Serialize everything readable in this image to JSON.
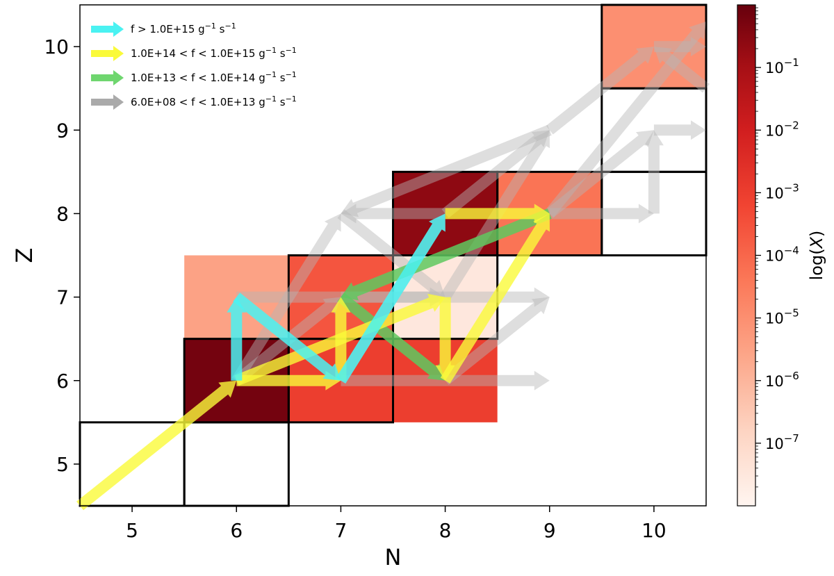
{
  "chart_data": {
    "type": "heatmap",
    "xlabel": "N",
    "ylabel": "Z",
    "xlim": [
      4.5,
      10.5
    ],
    "ylim": [
      4.5,
      10.5
    ],
    "xticks": [
      "5",
      "6",
      "7",
      "8",
      "9",
      "10"
    ],
    "yticks": [
      "5",
      "6",
      "7",
      "8",
      "9",
      "10"
    ],
    "colorbar": {
      "label_prefix": "log(",
      "label_var": "X",
      "label_suffix": ")",
      "log_min": -8.0,
      "log_max": 0,
      "ticks": [
        {
          "exp": -1,
          "base": "10",
          "power": "−1"
        },
        {
          "exp": -2,
          "base": "10",
          "power": "−2"
        },
        {
          "exp": -3,
          "base": "10",
          "power": "−3"
        },
        {
          "exp": -4,
          "base": "10",
          "power": "−4"
        },
        {
          "exp": -5,
          "base": "10",
          "power": "−5"
        },
        {
          "exp": -6,
          "base": "10",
          "power": "−6"
        },
        {
          "exp": -7,
          "base": "10",
          "power": "−7"
        }
      ]
    },
    "cells": [
      {
        "N": 6,
        "Z": 6,
        "log_x": -0.2
      },
      {
        "N": 7,
        "Z": 6,
        "log_x": -3.0
      },
      {
        "N": 8,
        "Z": 6,
        "log_x": -3.0
      },
      {
        "N": 6,
        "Z": 7,
        "log_x": -5.5
      },
      {
        "N": 7,
        "Z": 7,
        "log_x": -3.6
      },
      {
        "N": 8,
        "Z": 7,
        "log_x": -7.5
      },
      {
        "N": 8,
        "Z": 8,
        "log_x": -0.6
      },
      {
        "N": 9,
        "Z": 8,
        "log_x": -4.3
      },
      {
        "N": 10,
        "Z": 10,
        "log_x": -5.0
      }
    ],
    "outlined_cells": [
      {
        "N": 5,
        "Z": 5
      },
      {
        "N": 6,
        "Z": 5
      },
      {
        "N": 6,
        "Z": 6
      },
      {
        "N": 7,
        "Z": 6
      },
      {
        "N": 7,
        "Z": 7
      },
      {
        "N": 8,
        "Z": 7
      },
      {
        "N": 8,
        "Z": 8
      },
      {
        "N": 9,
        "Z": 8
      },
      {
        "N": 10,
        "Z": 8
      },
      {
        "N": 10,
        "Z": 9
      },
      {
        "N": 10,
        "Z": 10
      }
    ],
    "legend": {
      "placement": "upper-left",
      "entries": [
        {
          "text": "f  >  1.0E+15 g",
          "sup1": "−1",
          "mid": " s",
          "sup2": "−1",
          "color": "#4af2f2"
        },
        {
          "text": "1.0E+14  <  f  <  1.0E+15 g",
          "sup1": "−1",
          "mid": " s",
          "sup2": "−1",
          "color": "#fafa3a"
        },
        {
          "text": "1.0E+13  <  f  <  1.0E+14 g",
          "sup1": "−1",
          "mid": " s",
          "sup2": "−1",
          "color": "#6fd66f"
        },
        {
          "text": "6.0E+08  <  f  <  1.0E+13 g",
          "sup1": "−1",
          "mid": " s",
          "sup2": "−1",
          "color": "#aaaaaa"
        }
      ]
    },
    "flows": [
      {
        "from": [
          4.5,
          4.5
        ],
        "to": [
          6,
          6
        ],
        "category": "yellow"
      },
      {
        "from": [
          6,
          6
        ],
        "to": [
          6,
          7
        ],
        "category": "cyan"
      },
      {
        "from": [
          6,
          7
        ],
        "to": [
          7,
          6
        ],
        "category": "cyan"
      },
      {
        "from": [
          7,
          6
        ],
        "to": [
          8,
          8
        ],
        "category": "cyan"
      },
      {
        "from": [
          6,
          6
        ],
        "to": [
          7,
          6
        ],
        "category": "yellow"
      },
      {
        "from": [
          7,
          6
        ],
        "to": [
          7,
          7
        ],
        "category": "yellow"
      },
      {
        "from": [
          6,
          6
        ],
        "to": [
          8,
          7
        ],
        "category": "yellow"
      },
      {
        "from": [
          8,
          7
        ],
        "to": [
          8,
          6
        ],
        "category": "yellow"
      },
      {
        "from": [
          8,
          6
        ],
        "to": [
          9,
          8
        ],
        "category": "yellow"
      },
      {
        "from": [
          8,
          8
        ],
        "to": [
          9,
          8
        ],
        "category": "yellow"
      },
      {
        "from": [
          7,
          7
        ],
        "to": [
          8,
          6
        ],
        "category": "green"
      },
      {
        "from": [
          9,
          8
        ],
        "to": [
          7,
          7
        ],
        "category": "green"
      },
      {
        "from": [
          6,
          6
        ],
        "to": [
          7,
          7
        ],
        "category": "gray"
      },
      {
        "from": [
          6,
          6
        ],
        "to": [
          7,
          8
        ],
        "category": "gray"
      },
      {
        "from": [
          6,
          7
        ],
        "to": [
          8,
          7
        ],
        "category": "gray"
      },
      {
        "from": [
          7,
          6
        ],
        "to": [
          9,
          6
        ],
        "category": "gray"
      },
      {
        "from": [
          7,
          7
        ],
        "to": [
          9,
          7
        ],
        "category": "gray"
      },
      {
        "from": [
          7,
          8
        ],
        "to": [
          8,
          7
        ],
        "category": "gray"
      },
      {
        "from": [
          8,
          7
        ],
        "to": [
          9,
          9
        ],
        "category": "gray"
      },
      {
        "from": [
          8,
          8
        ],
        "to": [
          9,
          9
        ],
        "category": "gray"
      },
      {
        "from": [
          8,
          8
        ],
        "to": [
          7,
          8
        ],
        "category": "gray"
      },
      {
        "from": [
          9,
          8
        ],
        "to": [
          10,
          8
        ],
        "category": "gray"
      },
      {
        "from": [
          9,
          8
        ],
        "to": [
          10,
          9
        ],
        "category": "gray"
      },
      {
        "from": [
          9,
          9
        ],
        "to": [
          7,
          8
        ],
        "category": "gray"
      },
      {
        "from": [
          9,
          9
        ],
        "to": [
          10,
          10
        ],
        "category": "gray"
      },
      {
        "from": [
          10,
          8
        ],
        "to": [
          10,
          9
        ],
        "category": "gray"
      },
      {
        "from": [
          10,
          9
        ],
        "to": [
          10.5,
          9
        ],
        "category": "gray"
      },
      {
        "from": [
          10,
          10
        ],
        "to": [
          10.5,
          10
        ],
        "category": "gray"
      },
      {
        "from": [
          9,
          8
        ],
        "to": [
          10.5,
          10.3
        ],
        "category": "gray"
      },
      {
        "from": [
          8,
          6
        ],
        "to": [
          9,
          7
        ],
        "category": "gray"
      },
      {
        "from": [
          10.5,
          9.5
        ],
        "to": [
          10,
          10
        ],
        "category": "gray"
      },
      {
        "from": [
          7,
          6
        ],
        "to": [
          8,
          8
        ],
        "category": "gray"
      }
    ]
  }
}
